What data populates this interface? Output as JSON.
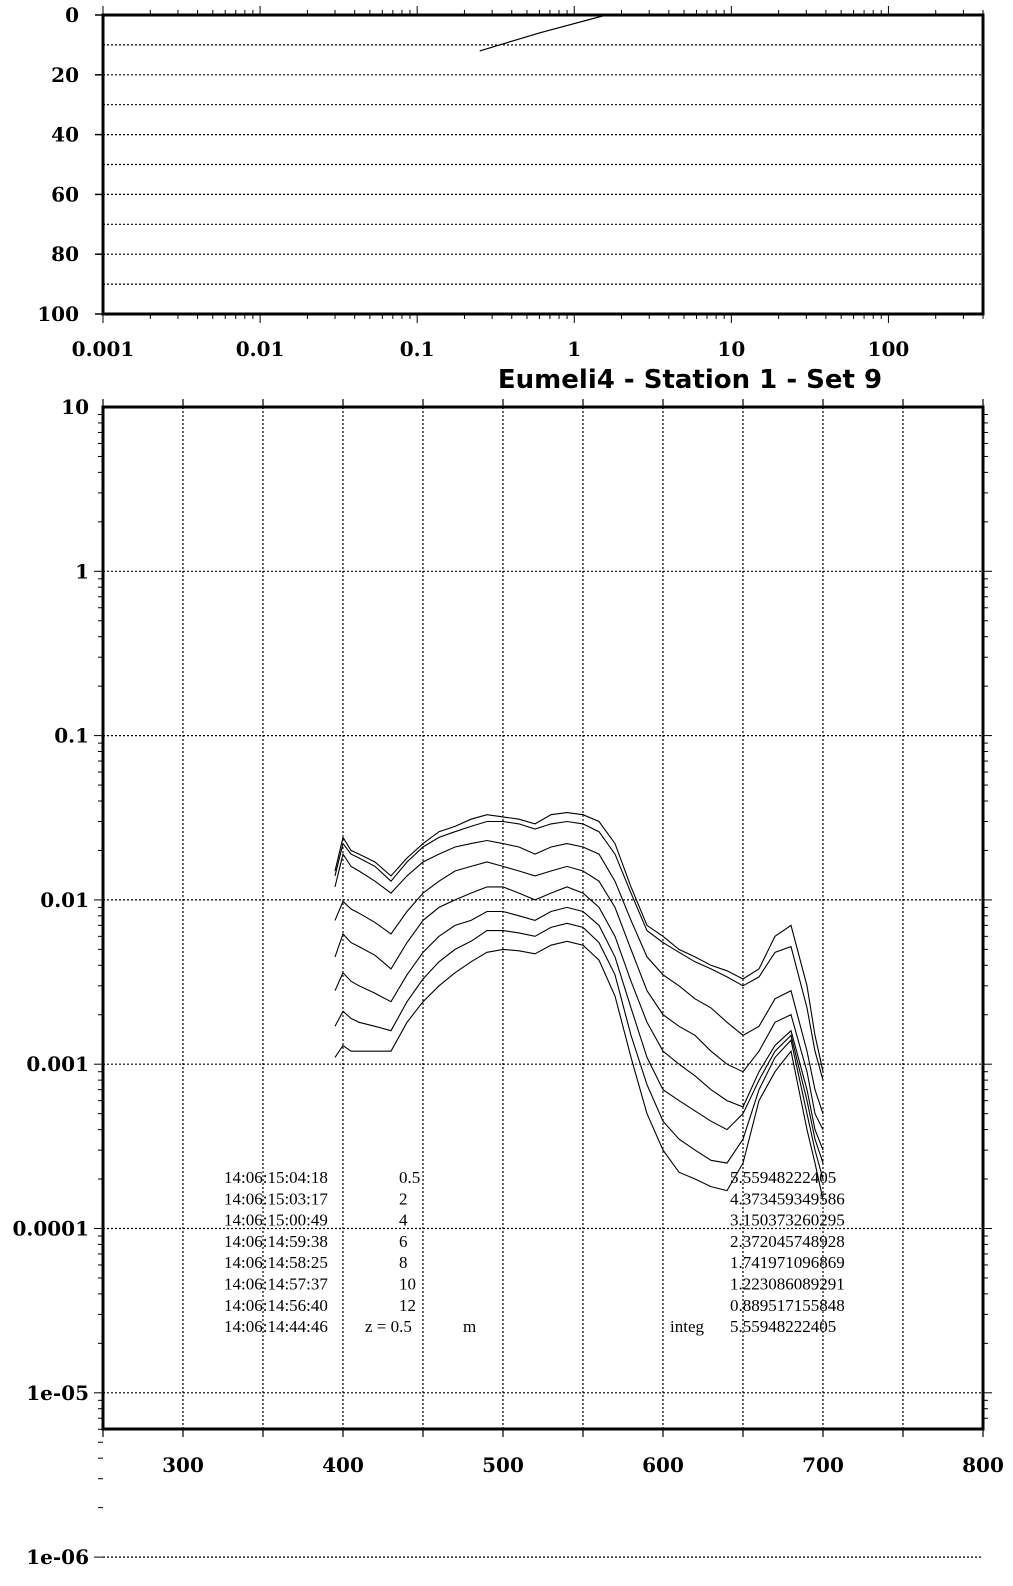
{
  "chart_data": [
    {
      "id": "depth-profile",
      "type": "line",
      "title": "",
      "xscale": "log",
      "xlim": [
        0.001,
        400
      ],
      "xticks": [
        "0.001",
        "0.01",
        "0.1",
        "1",
        "10",
        "100"
      ],
      "yticks": [
        "0",
        "20",
        "40",
        "60",
        "80",
        "100"
      ],
      "ylim": [
        0,
        100
      ],
      "yinverted": true,
      "grid": "horizontal-dotted",
      "series": [
        {
          "values": [
            [
              0.25,
              12
            ],
            [
              0.6,
              6
            ],
            [
              1.6,
              0
            ]
          ]
        }
      ]
    },
    {
      "id": "spectra",
      "type": "line",
      "title": "Eumeli4 - Station 1 - Set 9",
      "xlim": [
        250,
        800
      ],
      "yscale": "log",
      "ylim": [
        6e-06,
        10
      ],
      "xticks": [
        "300",
        "400",
        "500",
        "600",
        "700",
        "800"
      ],
      "yticks": [
        "10",
        "1",
        "0.1",
        "0.01",
        "0.001",
        "0.0001",
        "1e-05",
        "1e-06"
      ],
      "grid": "dotted",
      "x": [
        395,
        400,
        405,
        410,
        420,
        430,
        440,
        450,
        460,
        470,
        480,
        490,
        500,
        510,
        520,
        530,
        540,
        550,
        560,
        570,
        580,
        590,
        600,
        610,
        620,
        630,
        640,
        650,
        660,
        670,
        680,
        690,
        695,
        700
      ],
      "series": [
        {
          "values": [
            0.015,
            0.024,
            0.02,
            0.019,
            0.017,
            0.014,
            0.018,
            0.022,
            0.026,
            0.028,
            0.031,
            0.033,
            0.032,
            0.031,
            0.029,
            0.033,
            0.034,
            0.033,
            0.03,
            0.022,
            0.012,
            0.007,
            0.006,
            0.005,
            0.0045,
            0.004,
            0.0037,
            0.0033,
            0.0038,
            0.006,
            0.007,
            0.003,
            0.0015,
            0.0009
          ]
        },
        {
          "values": [
            0.014,
            0.022,
            0.019,
            0.018,
            0.016,
            0.013,
            0.017,
            0.021,
            0.024,
            0.026,
            0.028,
            0.03,
            0.03,
            0.029,
            0.027,
            0.029,
            0.03,
            0.029,
            0.026,
            0.019,
            0.011,
            0.0065,
            0.0055,
            0.0048,
            0.0042,
            0.0038,
            0.0034,
            0.003,
            0.0034,
            0.0048,
            0.0052,
            0.0022,
            0.0012,
            0.0008
          ]
        },
        {
          "values": [
            0.012,
            0.019,
            0.016,
            0.015,
            0.013,
            0.011,
            0.014,
            0.017,
            0.019,
            0.021,
            0.022,
            0.023,
            0.022,
            0.021,
            0.019,
            0.021,
            0.022,
            0.021,
            0.019,
            0.013,
            0.0075,
            0.0045,
            0.0035,
            0.003,
            0.0025,
            0.0022,
            0.0018,
            0.0015,
            0.0017,
            0.0025,
            0.0028,
            0.0012,
            0.0007,
            0.0005
          ]
        },
        {
          "values": [
            0.0075,
            0.0098,
            0.0088,
            0.0083,
            0.0073,
            0.0062,
            0.0085,
            0.011,
            0.013,
            0.015,
            0.016,
            0.017,
            0.016,
            0.015,
            0.014,
            0.015,
            0.016,
            0.015,
            0.013,
            0.009,
            0.005,
            0.0028,
            0.002,
            0.0017,
            0.0015,
            0.0012,
            0.001,
            0.0009,
            0.0012,
            0.0018,
            0.002,
            0.0009,
            0.0005,
            0.0004
          ]
        },
        {
          "values": [
            0.0045,
            0.0062,
            0.0055,
            0.0052,
            0.0046,
            0.0038,
            0.0055,
            0.0075,
            0.009,
            0.01,
            0.011,
            0.012,
            0.012,
            0.011,
            0.01,
            0.011,
            0.012,
            0.011,
            0.009,
            0.006,
            0.0032,
            0.0018,
            0.0012,
            0.001,
            0.00085,
            0.0007,
            0.0006,
            0.00055,
            0.0009,
            0.0013,
            0.0016,
            0.0007,
            0.0004,
            0.0003
          ]
        },
        {
          "values": [
            0.0028,
            0.0036,
            0.0032,
            0.003,
            0.0027,
            0.0024,
            0.0035,
            0.0048,
            0.006,
            0.007,
            0.0075,
            0.0085,
            0.0085,
            0.008,
            0.0075,
            0.0085,
            0.009,
            0.0085,
            0.007,
            0.0045,
            0.0022,
            0.0011,
            0.0007,
            0.0006,
            0.00052,
            0.00045,
            0.0004,
            0.0005,
            0.0008,
            0.0012,
            0.0015,
            0.0006,
            0.00035,
            0.00025
          ]
        },
        {
          "values": [
            0.0017,
            0.0021,
            0.0019,
            0.0018,
            0.0017,
            0.0016,
            0.0024,
            0.0033,
            0.0042,
            0.005,
            0.0056,
            0.0065,
            0.0065,
            0.0063,
            0.006,
            0.0068,
            0.0072,
            0.0068,
            0.0055,
            0.0035,
            0.0015,
            0.00075,
            0.00045,
            0.00035,
            0.0003,
            0.00026,
            0.00025,
            0.00035,
            0.0007,
            0.0011,
            0.0014,
            0.0005,
            0.0003,
            0.0002
          ]
        },
        {
          "values": [
            0.0011,
            0.0013,
            0.0012,
            0.0012,
            0.0012,
            0.0012,
            0.0018,
            0.0024,
            0.003,
            0.0036,
            0.0042,
            0.0048,
            0.005,
            0.0049,
            0.0047,
            0.0053,
            0.0056,
            0.0053,
            0.0043,
            0.0026,
            0.0011,
            0.0005,
            0.0003,
            0.00022,
            0.0002,
            0.00018,
            0.00017,
            0.00025,
            0.0006,
            0.0009,
            0.0012,
            0.0004,
            0.00025,
            0.00015
          ]
        }
      ],
      "legend_rows": [
        {
          "time": "14:06:15:04:18",
          "depth": "0.5",
          "value": "5.55948222405"
        },
        {
          "time": "14:06:15:03:17",
          "depth": "2",
          "value": "4.373459349586"
        },
        {
          "time": "14:06:15:00:49",
          "depth": "4",
          "value": "3.150373260295"
        },
        {
          "time": "14:06:14:59:38",
          "depth": "6",
          "value": "2.372045748928"
        },
        {
          "time": "14:06:14:58:25",
          "depth": "8",
          "value": "1.741971096869"
        },
        {
          "time": "14:06:14:57:37",
          "depth": "10",
          "value": "1.223086089291"
        },
        {
          "time": "14:06:14:56:40",
          "depth": "12",
          "value": "0.889517155848"
        }
      ],
      "footer_row": {
        "time": "14:06:14:44:46",
        "z_text": "z = 0.5",
        "unit": "m",
        "integ_label": "integ",
        "integ_value": "5.55948222405"
      }
    }
  ]
}
